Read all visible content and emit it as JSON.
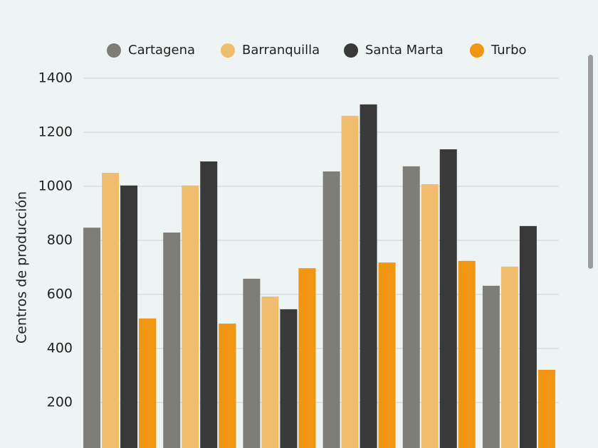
{
  "chart_data": {
    "type": "bar",
    "y_label": "Centros de producción",
    "categories": [
      null,
      null,
      null,
      null,
      null,
      null
    ],
    "series": [
      {
        "name": "Cartagena",
        "color": "#7f7d78",
        "values": [
          847,
          829,
          658,
          1055,
          1074,
          632
        ]
      },
      {
        "name": "Barranquilla",
        "color": "#f0bd6c",
        "values": [
          1050,
          1003,
          592,
          1261,
          1008,
          703
        ]
      },
      {
        "name": "Santa Marta",
        "color": "#3a393a",
        "values": [
          1003,
          1092,
          545,
          1303,
          1137,
          853
        ]
      },
      {
        "name": "Turbo",
        "color": "#f29611",
        "values": [
          511,
          492,
          697,
          718,
          724,
          321
        ]
      }
    ],
    "ylim": [
      0,
      1400
    ],
    "yticks": [
      200,
      400,
      600,
      800,
      1000,
      1200,
      1400
    ],
    "grid": true
  }
}
